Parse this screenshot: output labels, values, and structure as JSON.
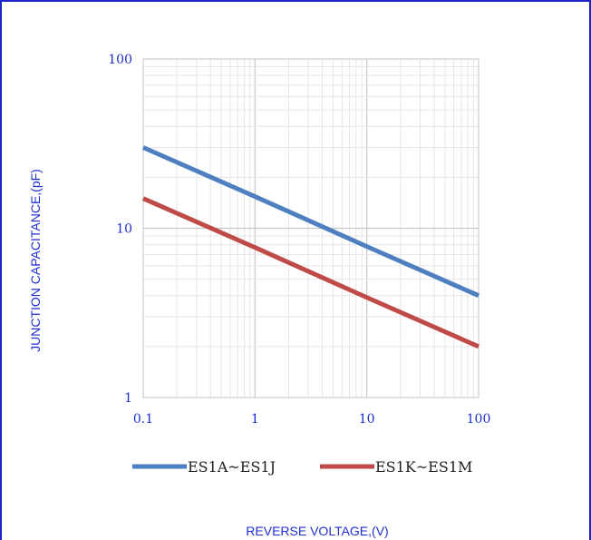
{
  "chart_data": {
    "type": "line",
    "x_scale": "log",
    "y_scale": "log",
    "xlim": [
      0.1,
      100
    ],
    "ylim": [
      1,
      100
    ],
    "xlabel": "REVERSE VOLTAGE,(V)",
    "ylabel": "JUNCTION CAPACITANCE,(pF)",
    "x_ticks": [
      "0.1",
      "1",
      "10",
      "100"
    ],
    "y_ticks": [
      "1",
      "10",
      "100"
    ],
    "grid": true,
    "legend_position": "bottom",
    "series": [
      {
        "name": "ES1A~ES1J",
        "color": "#4e7fc0",
        "x": [
          0.1,
          1,
          10,
          100
        ],
        "y": [
          30,
          15.4,
          7.8,
          4
        ]
      },
      {
        "name": "ES1K~ES1M",
        "color": "#bf4b48",
        "x": [
          0.1,
          1,
          10,
          100
        ],
        "y": [
          15,
          7.7,
          3.9,
          2
        ]
      }
    ],
    "colors": {
      "frame": "#1a24c8",
      "text": "#1f2fd0",
      "grid": "#d9d9d9"
    }
  }
}
